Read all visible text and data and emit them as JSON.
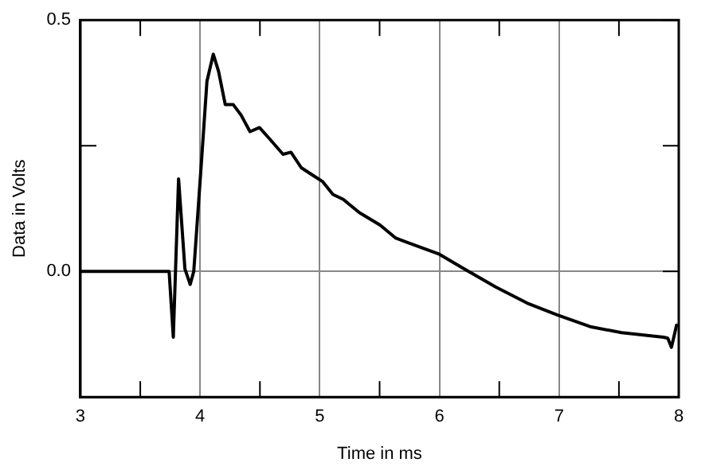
{
  "chart_data": {
    "type": "line",
    "xlabel": "Time in ms",
    "ylabel": "Data in Volts",
    "series": [
      {
        "color": "#000000",
        "x": [
          3.0,
          3.741,
          3.776,
          3.82,
          3.873,
          3.917,
          3.947,
          4.013,
          4.057,
          4.11,
          4.154,
          4.21,
          4.276,
          4.342,
          4.417,
          4.496,
          4.583,
          4.693,
          4.759,
          4.846,
          4.956,
          5.022,
          5.11,
          5.197,
          5.33,
          5.504,
          5.636,
          5.9,
          6.0,
          6.206,
          6.469,
          6.732,
          6.987,
          7.259,
          7.522,
          7.873,
          7.908,
          7.939,
          7.982
        ],
        "values": [
          0,
          0,
          -0.131,
          0.184,
          0.005,
          -0.026,
          0,
          0.224,
          0.378,
          0.432,
          0.398,
          0.332,
          0.332,
          0.311,
          0.278,
          0.286,
          0.263,
          0.233,
          0.237,
          0.206,
          0.189,
          0.179,
          0.153,
          0.143,
          0.117,
          0.092,
          0.066,
          0.043,
          0.034,
          0.005,
          -0.031,
          -0.063,
          -0.087,
          -0.11,
          -0.122,
          -0.131,
          -0.133,
          -0.151,
          -0.107
        ]
      }
    ],
    "xlim": [
      3,
      8
    ],
    "xticks": [
      3,
      {
        "value": 3.5,
        "label": null
      },
      4,
      {
        "value": 4.5,
        "label": null
      },
      5,
      {
        "value": 5.5,
        "label": null
      },
      6,
      {
        "value": 6.5,
        "label": null
      },
      7,
      {
        "value": 7.5,
        "label": null
      },
      8
    ],
    "ylim": [
      -0.25,
      0.5
    ],
    "yticks": [
      {
        "value": 0.0,
        "label": "0.0"
      },
      {
        "value": 0.25,
        "label": null
      },
      {
        "value": 0.5,
        "label": "0.5"
      }
    ],
    "grid": true,
    "legend": false,
    "marker": "none",
    "line_style": "solid"
  }
}
